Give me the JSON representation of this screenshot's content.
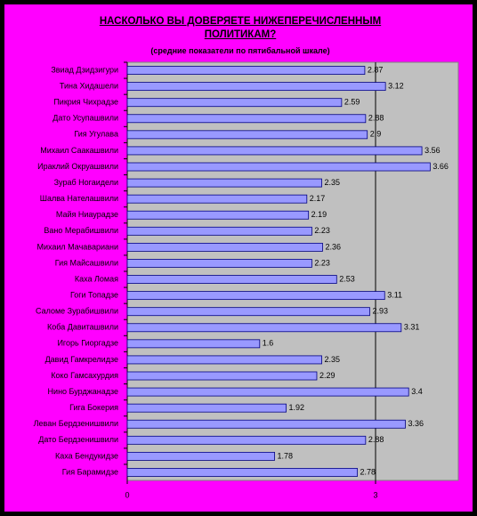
{
  "chart_data": {
    "type": "bar",
    "orientation": "horizontal",
    "title": "НАСКОЛЬКО ВЫ ДОВЕРЯЕТЕ НИЖЕПЕРЕЧИСЛЕННЫМ ПОЛИТИКАМ?",
    "subtitle": "(средние показатели по пятибальной шкале)",
    "categories": [
      "Звиад Дзидзигури",
      "Тина Хидашели",
      "Пикрия Чихрадзе",
      "Дато Усупашвили",
      "Гия Угулава",
      "Михаил Саакашвили",
      "Ираклий Окруашвили",
      "Зураб Ногаидели",
      "Шалва Нателашвили",
      "Майя Ниаурадзе",
      "Вано Мерабишвили",
      "Михаил Мачавариани",
      "Гия Майсашвили",
      "Каха Ломая",
      "Гоги Топадзе",
      "Саломе Зурабишвили",
      "Коба Давиташвили",
      "Игорь Гиоргадзе",
      "Давид Гамкрелидзе",
      "Коко Гамсахурдия",
      "Нино Бурджанадзе",
      "Гига Бокерия",
      "Леван Бердзенишвили",
      "Дато Бердзенишвили",
      "Каха Бендукидзе",
      "Гия Барамидзе"
    ],
    "values": [
      2.87,
      3.12,
      2.59,
      2.88,
      2.9,
      3.56,
      3.66,
      2.35,
      2.17,
      2.19,
      2.23,
      2.36,
      2.23,
      2.53,
      3.11,
      2.93,
      3.31,
      1.6,
      2.35,
      2.29,
      3.4,
      1.92,
      3.36,
      2.88,
      1.78,
      2.78
    ],
    "color": "#9999ff",
    "xlim": [
      0,
      4
    ],
    "xticks": [
      0,
      3
    ],
    "grid": true
  }
}
